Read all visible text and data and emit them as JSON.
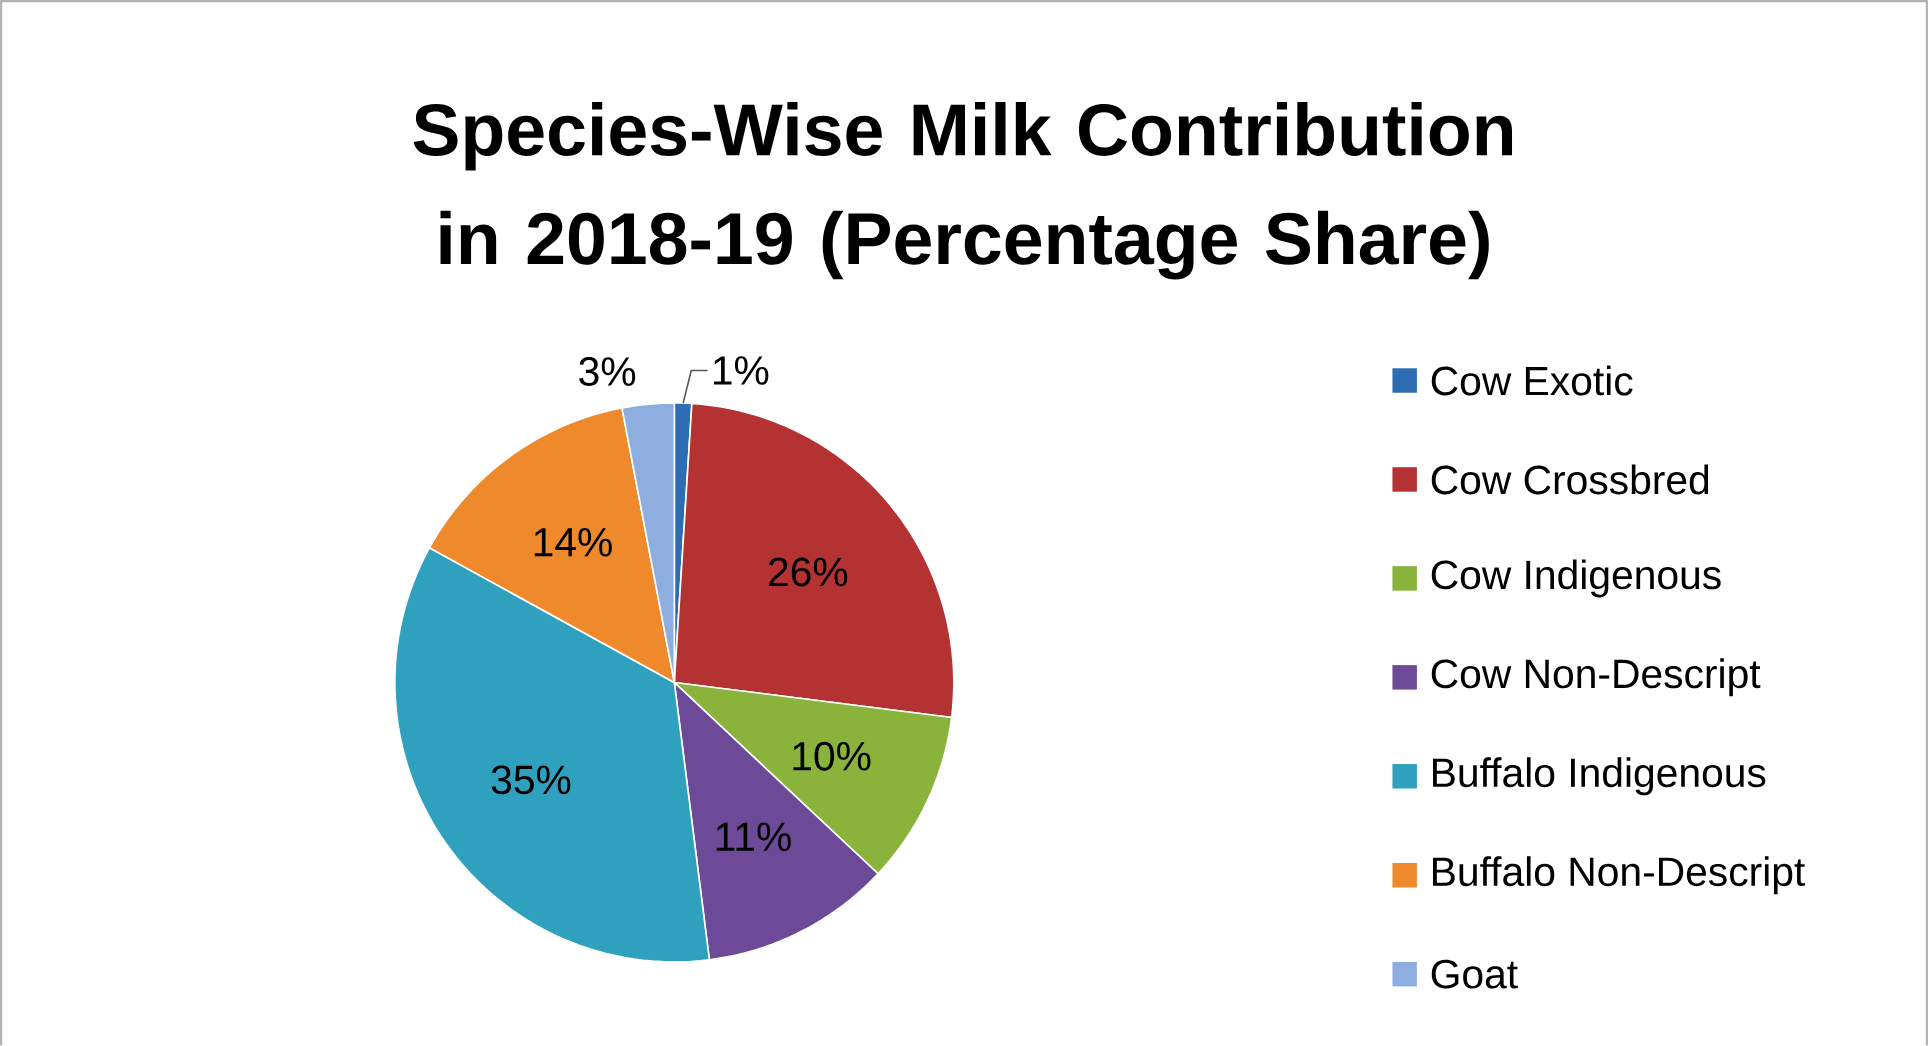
{
  "chart_data": {
    "type": "pie",
    "title": "Species-Wise Milk Contribution in 2018-19 (Percentage Share)",
    "categories": [
      "Cow Exotic",
      "Cow Crossbred",
      "Cow Indigenous",
      "Cow Non-Descript",
      "Buffalo Indigenous",
      "Buffalo Non-Descript",
      "Goat"
    ],
    "values": [
      1,
      26,
      10,
      11,
      35,
      14,
      3
    ],
    "colors": [
      "#2e6db4",
      "#b53232",
      "#8ab33c",
      "#6c4a98",
      "#30a0bf",
      "#ee8a2c",
      "#8eaee0"
    ],
    "value_labels": [
      "1%",
      "26%",
      "10%",
      "11%",
      "35%",
      "14%",
      "3%"
    ],
    "legend": "right"
  }
}
